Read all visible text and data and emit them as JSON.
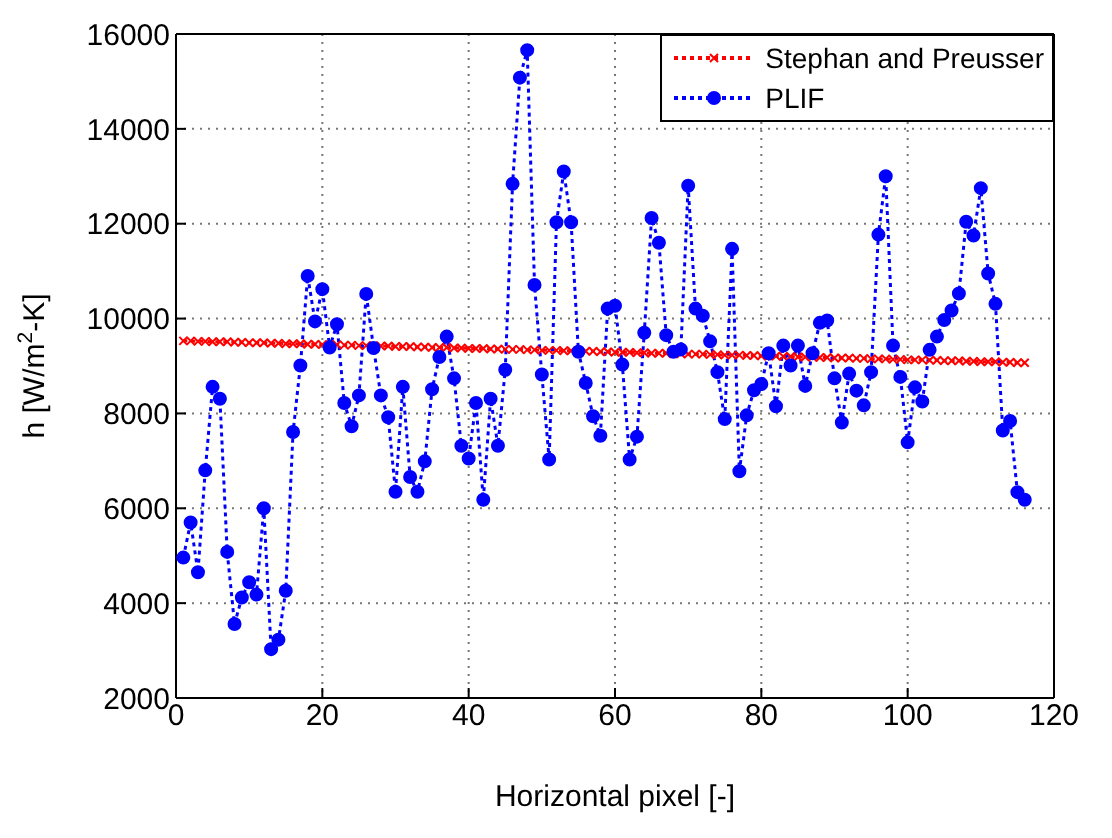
{
  "chart_data": {
    "type": "line",
    "xlabel": "Horizontal pixel [-]",
    "ylabel": "h [W/m$^{2}$-K]",
    "xlim": [
      0,
      120
    ],
    "xticks": [
      0,
      20,
      40,
      60,
      80,
      100,
      120
    ],
    "ylim": [
      2000,
      16000
    ],
    "yticks": [
      2000,
      4000,
      6000,
      8000,
      10000,
      12000,
      14000,
      16000
    ],
    "grid": true,
    "legend": "top right",
    "line_style": "dotted",
    "x": [
      1,
      2,
      3,
      4,
      5,
      6,
      7,
      8,
      9,
      10,
      11,
      12,
      13,
      14,
      15,
      16,
      17,
      18,
      19,
      20,
      21,
      22,
      23,
      24,
      25,
      26,
      27,
      28,
      29,
      30,
      31,
      32,
      33,
      34,
      35,
      36,
      37,
      38,
      39,
      40,
      41,
      42,
      43,
      44,
      45,
      46,
      47,
      48,
      49,
      50,
      51,
      52,
      53,
      54,
      55,
      56,
      57,
      58,
      59,
      60,
      61,
      62,
      63,
      64,
      65,
      66,
      67,
      68,
      69,
      70,
      71,
      72,
      73,
      74,
      75,
      76,
      77,
      78,
      79,
      80,
      81,
      82,
      83,
      84,
      85,
      86,
      87,
      88,
      89,
      90,
      91,
      92,
      93,
      94,
      95,
      96,
      97,
      98,
      99,
      100,
      101,
      102,
      103,
      104,
      105,
      106,
      107,
      108,
      109,
      110,
      111,
      112,
      113,
      114,
      115,
      116
    ],
    "series": [
      {
        "name": "Stephan and Preusser",
        "color": "#ff0000",
        "marker": "cross",
        "values": [
          9530,
          9530,
          9520,
          9520,
          9510,
          9510,
          9510,
          9500,
          9500,
          9490,
          9490,
          9490,
          9480,
          9480,
          9470,
          9470,
          9470,
          9460,
          9460,
          9450,
          9450,
          9450,
          9440,
          9440,
          9430,
          9430,
          9430,
          9420,
          9420,
          9410,
          9410,
          9410,
          9400,
          9400,
          9390,
          9390,
          9390,
          9380,
          9380,
          9370,
          9370,
          9370,
          9360,
          9360,
          9350,
          9350,
          9350,
          9340,
          9340,
          9330,
          9330,
          9330,
          9320,
          9320,
          9310,
          9310,
          9310,
          9300,
          9300,
          9290,
          9290,
          9290,
          9280,
          9280,
          9270,
          9270,
          9270,
          9260,
          9260,
          9250,
          9250,
          9250,
          9240,
          9240,
          9230,
          9230,
          9230,
          9220,
          9220,
          9210,
          9210,
          9210,
          9200,
          9200,
          9190,
          9190,
          9190,
          9180,
          9180,
          9170,
          9170,
          9170,
          9160,
          9160,
          9150,
          9150,
          9150,
          9140,
          9140,
          9130,
          9130,
          9130,
          9120,
          9120,
          9110,
          9110,
          9110,
          9100,
          9100,
          9090,
          9090,
          9090,
          9080,
          9080,
          9070,
          9070
        ]
      },
      {
        "name": "PLIF",
        "color": "#0000ff",
        "marker": "circle",
        "values": [
          4960,
          5700,
          4650,
          6800,
          8560,
          8310,
          5080,
          3560,
          4120,
          4440,
          4180,
          6000,
          3030,
          3230,
          4260,
          7610,
          9010,
          10900,
          9940,
          10620,
          9390,
          9880,
          8220,
          7730,
          8380,
          10520,
          9380,
          8380,
          7920,
          6350,
          8560,
          6660,
          6350,
          6990,
          8510,
          9190,
          9620,
          8740,
          7320,
          7050,
          8220,
          6180,
          8310,
          7320,
          8920,
          12840,
          15080,
          15660,
          10710,
          8820,
          7030,
          12030,
          13100,
          12030,
          9300,
          8640,
          7940,
          7530,
          10210,
          10270,
          9030,
          7030,
          7510,
          9700,
          12120,
          11600,
          9650,
          9300,
          9350,
          12800,
          10210,
          10060,
          9520,
          8870,
          7880,
          11470,
          6780,
          7960,
          8490,
          8620,
          9270,
          8150,
          9430,
          9010,
          9430,
          8580,
          9270,
          9910,
          9960,
          8740,
          7810,
          8840,
          8480,
          8170,
          8870,
          11770,
          13000,
          9430,
          8770,
          7390,
          8550,
          8250,
          9340,
          9620,
          9970,
          10170,
          10530,
          12040,
          11750,
          12750,
          10950,
          10310,
          7640,
          7840,
          6340,
          6180
        ]
      }
    ]
  }
}
